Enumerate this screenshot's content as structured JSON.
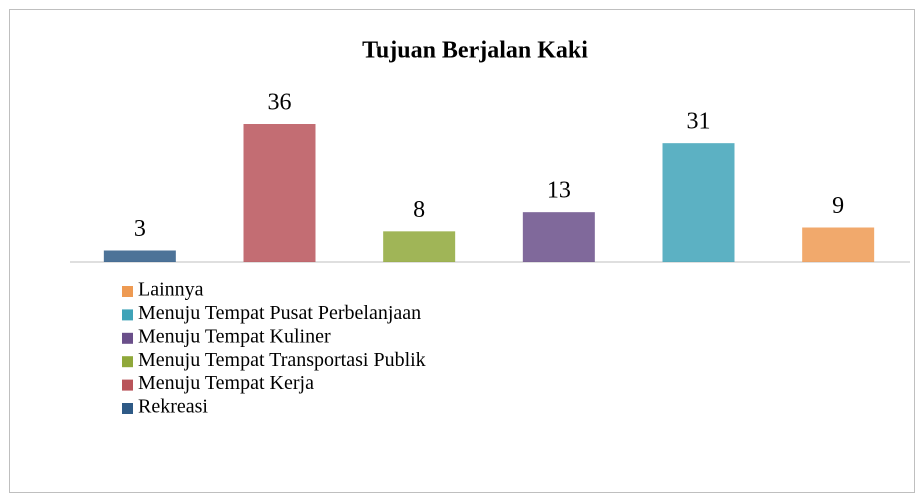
{
  "chart_data": {
    "type": "bar",
    "title": "Tujuan Berjalan Kaki",
    "categories": [
      "Rekreasi",
      "Menuju Tempat Kerja",
      "Menuju Tempat Transportasi Publik",
      "Menuju Tempat Kuliner",
      "Menuju Tempat Pusat Perbelanjaan",
      "Lainnya"
    ],
    "values": [
      3,
      36,
      8,
      13,
      31,
      9
    ],
    "colors": [
      "#2e5a86",
      "#b9545a",
      "#8fa83a",
      "#6a4f8a",
      "#3fa3b8",
      "#ee9a52"
    ],
    "legend": "bottom-left"
  }
}
